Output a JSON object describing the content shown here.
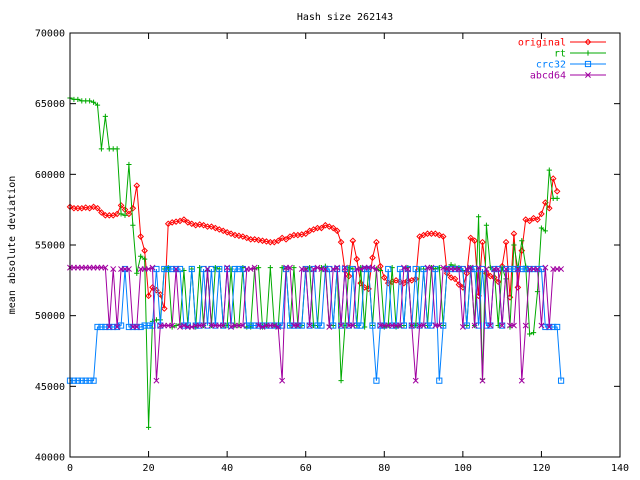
{
  "chart_data": {
    "type": "line",
    "title": "Hash size 262143",
    "xlabel": "",
    "ylabel": "mean absolute deviation",
    "xlim": [
      0,
      140
    ],
    "ylim": [
      40000,
      70000
    ],
    "x_ticks": [
      "0",
      "20",
      "40",
      "60",
      "80",
      "100",
      "120",
      "140"
    ],
    "y_ticks": [
      "40000",
      "45000",
      "50000",
      "55000",
      "60000",
      "65000",
      "70000"
    ],
    "grid": false,
    "legend": "top-right",
    "x_start": 0,
    "series": [
      {
        "name": "original",
        "color": "#ff0000",
        "marker": "diamond",
        "values": [
          57700,
          57600,
          57600,
          57600,
          57650,
          57600,
          57700,
          57600,
          57300,
          57100,
          57100,
          57100,
          57200,
          57800,
          57500,
          57200,
          57600,
          59200,
          55600,
          54600,
          51400,
          52000,
          51800,
          51500,
          50500,
          56500,
          56600,
          56650,
          56700,
          56800,
          56600,
          56500,
          56400,
          56450,
          56400,
          56300,
          56300,
          56200,
          56100,
          56000,
          55900,
          55800,
          55700,
          55650,
          55600,
          55500,
          55400,
          55400,
          55350,
          55300,
          55250,
          55200,
          55200,
          55300,
          55500,
          55400,
          55600,
          55700,
          55700,
          55750,
          55800,
          56000,
          56100,
          56200,
          56200,
          56400,
          56300,
          56200,
          56000,
          55200,
          53200,
          52800,
          55300,
          54000,
          52300,
          52000,
          51900,
          54100,
          55200,
          53500,
          52700,
          52300,
          52400,
          52500,
          52400,
          52300,
          52500,
          52500,
          52600,
          55600,
          55700,
          55800,
          55800,
          55800,
          55700,
          55600,
          53000,
          52700,
          52600,
          52200,
          52000,
          53000,
          55500,
          55300,
          51400,
          55200,
          53000,
          52800,
          52700,
          52400,
          53500,
          55200,
          51300,
          55800,
          52000,
          54600,
          56800,
          56700,
          56900,
          56800,
          57200,
          58000,
          57600,
          59700,
          58800
        ]
      },
      {
        "name": "rt",
        "color": "#00aa00",
        "marker": "plus",
        "values": [
          65400,
          65300,
          65300,
          65200,
          65200,
          65200,
          65100,
          64900,
          61800,
          64100,
          61800,
          61800,
          61800,
          57200,
          57100,
          60700,
          56400,
          53000,
          54200,
          54000,
          42100,
          49600,
          49700,
          49700,
          53300,
          53400,
          49200,
          49300,
          49400,
          53200,
          49300,
          53300,
          49200,
          53400,
          49300,
          53200,
          49300,
          53400,
          53300,
          49300,
          49300,
          53300,
          49300,
          49300,
          53400,
          49200,
          49200,
          53300,
          53400,
          49200,
          49300,
          53400,
          49300,
          49200,
          53400,
          53300,
          49300,
          53400,
          49300,
          49300,
          53300,
          53400,
          49300,
          49300,
          53400,
          53500,
          49300,
          49300,
          53300,
          45400,
          49300,
          53400,
          53300,
          49300,
          53400,
          49200,
          53300,
          49300,
          53300,
          53200,
          49200,
          49300,
          53400,
          49200,
          49300,
          49300,
          53400,
          49300,
          49300,
          53300,
          53300,
          49300,
          53400,
          53300,
          53400,
          49300,
          53300,
          53600,
          53500,
          53400,
          53200,
          49300,
          53400,
          49300,
          57000,
          45500,
          56400,
          53400,
          53200,
          49300,
          53400,
          52600,
          49200,
          55000,
          53300,
          55300,
          53500,
          48700,
          48800,
          51700,
          56200,
          56000,
          60300,
          58300,
          58300
        ]
      },
      {
        "name": "crc32",
        "color": "#0080ff",
        "marker": "square",
        "values": [
          45400,
          45400,
          45400,
          45400,
          45400,
          45400,
          45400,
          49200,
          49200,
          49200,
          49200,
          49200,
          49200,
          49300,
          53300,
          49200,
          49200,
          49200,
          49200,
          49300,
          49300,
          49300,
          53300,
          49300,
          53300,
          53300,
          53300,
          53300,
          53300,
          49300,
          49300,
          53300,
          49300,
          49300,
          53300,
          49300,
          53300,
          49300,
          53300,
          49300,
          53300,
          49300,
          53300,
          53300,
          53300,
          49300,
          49300,
          49300,
          49300,
          49300,
          49300,
          49300,
          49300,
          49300,
          49300,
          53300,
          49300,
          49300,
          49300,
          49300,
          53300,
          49300,
          53300,
          49300,
          49300,
          53300,
          53300,
          49300,
          53300,
          49300,
          53300,
          49300,
          53300,
          49300,
          49300,
          53300,
          53300,
          49300,
          45400,
          49300,
          49300,
          53300,
          49300,
          49300,
          53300,
          49300,
          53300,
          49300,
          53300,
          49300,
          53300,
          49300,
          49300,
          53300,
          45400,
          49300,
          53300,
          53300,
          53300,
          53300,
          53300,
          49300,
          53300,
          53300,
          49300,
          53300,
          49300,
          49300,
          53300,
          53300,
          49300,
          53300,
          53300,
          53300,
          53300,
          53300,
          53300,
          53300,
          53300,
          53300,
          53300,
          49200,
          49200,
          49200,
          49200,
          45400
        ]
      },
      {
        "name": "abcd64",
        "color": "#a000a0",
        "marker": "cross",
        "values": [
          53400,
          53400,
          53400,
          53400,
          53400,
          53400,
          53400,
          53400,
          53400,
          53400,
          49200,
          53300,
          49200,
          53300,
          53300,
          53300,
          49200,
          49200,
          53300,
          53300,
          53300,
          53400,
          45400,
          49300,
          49300,
          49300,
          49300,
          53300,
          49200,
          49300,
          49200,
          49200,
          49300,
          49300,
          49300,
          53300,
          49300,
          49300,
          49300,
          49300,
          53400,
          49200,
          49300,
          49300,
          49300,
          53300,
          53300,
          53400,
          49300,
          49200,
          49300,
          49300,
          49300,
          49200,
          45400,
          53400,
          53400,
          49300,
          49300,
          53300,
          53300,
          49300,
          53300,
          53400,
          53300,
          53300,
          49200,
          53300,
          53400,
          49300,
          53400,
          49300,
          49300,
          53300,
          53300,
          53400,
          53400,
          53400,
          53300,
          49300,
          49300,
          49300,
          49300,
          49300,
          49300,
          53400,
          53300,
          49300,
          45400,
          49300,
          49300,
          53400,
          53400,
          49300,
          49300,
          53400,
          53300,
          53300,
          53300,
          53300,
          49200,
          53300,
          53400,
          49300,
          53400,
          45400,
          53300,
          49300,
          53300,
          53300,
          49300,
          53300,
          49300,
          49300,
          53300,
          45400,
          49300,
          53300,
          53300,
          53300,
          49300,
          53400,
          49200,
          53300,
          53300,
          53300
        ]
      }
    ]
  }
}
